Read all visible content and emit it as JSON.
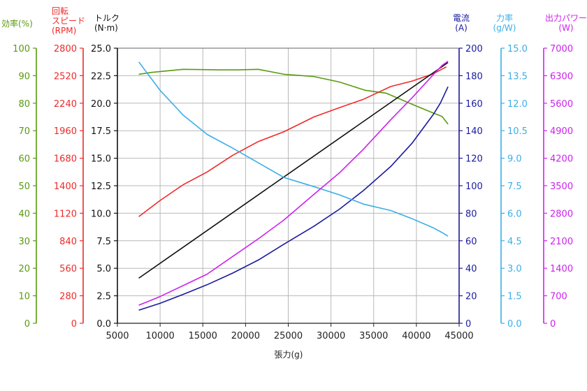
{
  "chart_data": {
    "type": "line",
    "xlabel": "張力(g)",
    "xlim": [
      5000,
      45000
    ],
    "x_ticks": [
      5000,
      10000,
      15000,
      20000,
      25000,
      30000,
      35000,
      40000,
      45000
    ],
    "grid": true,
    "axes": [
      {
        "id": "efficiency",
        "label": "効率(%)",
        "color": "#5a9a10",
        "side": "left",
        "lim": [
          0,
          100
        ],
        "ticks": [
          0,
          10,
          20,
          30,
          40,
          50,
          60,
          70,
          80,
          90,
          100
        ]
      },
      {
        "id": "speed",
        "label": "回転スピード(RPM)",
        "color": "#ee2a2a",
        "side": "left",
        "lim": [
          0,
          2800
        ],
        "ticks": [
          0,
          280,
          560,
          840,
          1120,
          1400,
          1680,
          1960,
          2240,
          2520,
          2800
        ]
      },
      {
        "id": "torque",
        "label": "トルク(N·m)",
        "color": "#111111",
        "side": "left",
        "lim": [
          0,
          25
        ],
        "ticks": [
          "0.0",
          "2.5",
          "5.0",
          "7.5",
          "10.0",
          "12.5",
          "15.0",
          "17.5",
          "20.0",
          "22.5",
          "25.0"
        ]
      },
      {
        "id": "current",
        "label": "電流(A)",
        "color": "#1a1a9e",
        "side": "right",
        "lim": [
          0,
          200
        ],
        "ticks": [
          0,
          20,
          40,
          60,
          80,
          100,
          120,
          140,
          160,
          180,
          200
        ]
      },
      {
        "id": "force_rate",
        "label": "力率(g/W)",
        "color": "#3aaee8",
        "side": "right",
        "lim": [
          0,
          15
        ],
        "ticks": [
          "0.0",
          "1.5",
          "3.0",
          "4.5",
          "6.0",
          "7.5",
          "9.0",
          "10.5",
          "12.0",
          "13.5",
          "15.0"
        ]
      },
      {
        "id": "power",
        "label": "出力パワー(W)",
        "color": "#cc22ee",
        "side": "right",
        "lim": [
          0,
          7000
        ],
        "ticks": [
          0,
          700,
          1400,
          2100,
          2800,
          3500,
          4200,
          4900,
          5600,
          6300,
          7000
        ]
      }
    ],
    "series": [
      {
        "axis": "efficiency",
        "color": "#5a9a10",
        "points": [
          [
            7500,
            90.5
          ],
          [
            9000,
            91.2
          ],
          [
            11000,
            91.8
          ],
          [
            12700,
            92.3
          ],
          [
            15000,
            92.2
          ],
          [
            17000,
            92.1
          ],
          [
            19000,
            92.1
          ],
          [
            21500,
            92.3
          ],
          [
            24500,
            90.5
          ],
          [
            28000,
            89.7
          ],
          [
            31000,
            87.7
          ],
          [
            34000,
            84.7
          ],
          [
            36500,
            83.6
          ],
          [
            39500,
            79.6
          ],
          [
            42000,
            76.4
          ],
          [
            43000,
            75.2
          ],
          [
            43700,
            72.4
          ]
        ]
      },
      {
        "axis": "speed",
        "color": "#ee2a2a",
        "points": [
          [
            7500,
            1085
          ],
          [
            10000,
            1250
          ],
          [
            12700,
            1410
          ],
          [
            15500,
            1540
          ],
          [
            18500,
            1710
          ],
          [
            21500,
            1850
          ],
          [
            24500,
            1950
          ],
          [
            28000,
            2100
          ],
          [
            31000,
            2195
          ],
          [
            33800,
            2280
          ],
          [
            37000,
            2410
          ],
          [
            39500,
            2465
          ],
          [
            42000,
            2540
          ],
          [
            43500,
            2610
          ]
        ]
      },
      {
        "axis": "torque",
        "color": "#111111",
        "points": [
          [
            7500,
            4.1
          ],
          [
            43700,
            23.7
          ]
        ]
      },
      {
        "axis": "current",
        "color": "#1a1a9e",
        "points": [
          [
            7500,
            9.5
          ],
          [
            10000,
            14.5
          ],
          [
            12700,
            21
          ],
          [
            15500,
            28
          ],
          [
            18500,
            36.5
          ],
          [
            21500,
            46
          ],
          [
            24500,
            57.5
          ],
          [
            28000,
            70.5
          ],
          [
            31000,
            83
          ],
          [
            33800,
            96.5
          ],
          [
            37000,
            114
          ],
          [
            39500,
            131
          ],
          [
            42000,
            152
          ],
          [
            42800,
            160
          ],
          [
            43700,
            172
          ]
        ]
      },
      {
        "axis": "force_rate",
        "color": "#3aaee8",
        "points": [
          [
            7500,
            14.25
          ],
          [
            10000,
            12.7
          ],
          [
            12700,
            11.35
          ],
          [
            15500,
            10.3
          ],
          [
            18500,
            9.55
          ],
          [
            21500,
            8.75
          ],
          [
            24500,
            7.95
          ],
          [
            28000,
            7.45
          ],
          [
            31000,
            7.0
          ],
          [
            33800,
            6.5
          ],
          [
            37000,
            6.15
          ],
          [
            39500,
            5.7
          ],
          [
            42000,
            5.2
          ],
          [
            43000,
            4.95
          ],
          [
            43700,
            4.75
          ]
        ]
      },
      {
        "axis": "power",
        "color": "#cc22ee",
        "points": [
          [
            7500,
            460
          ],
          [
            10000,
            680
          ],
          [
            12700,
            960
          ],
          [
            15500,
            1250
          ],
          [
            18500,
            1700
          ],
          [
            21500,
            2150
          ],
          [
            24500,
            2630
          ],
          [
            28000,
            3280
          ],
          [
            31000,
            3830
          ],
          [
            33800,
            4430
          ],
          [
            37000,
            5180
          ],
          [
            39500,
            5740
          ],
          [
            42000,
            6330
          ],
          [
            43000,
            6560
          ],
          [
            43700,
            6670
          ]
        ]
      }
    ]
  }
}
